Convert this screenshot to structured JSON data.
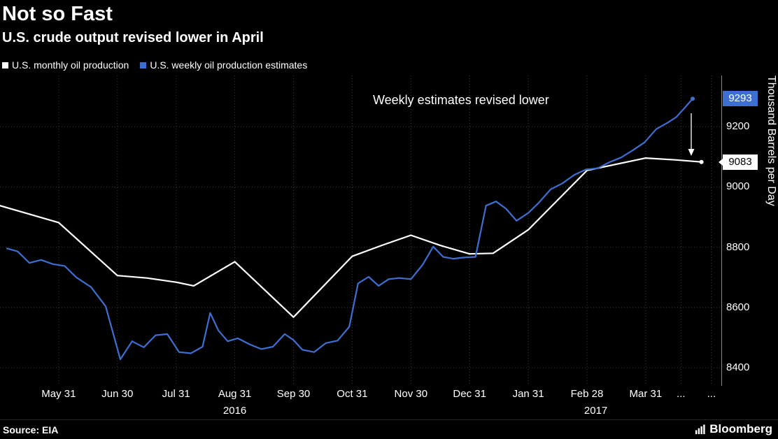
{
  "header": {
    "title": "Not so Fast",
    "subtitle": "U.S. crude output revised lower in April"
  },
  "legend": [
    {
      "label": "U.S. monthly oil production",
      "color": "#ffffff"
    },
    {
      "label": "U.S. weekly oil production estimates",
      "color": "#3d6fd2"
    }
  ],
  "annotation": {
    "text": "Weekly estimates revised lower"
  },
  "badges": {
    "weekly": {
      "value": "9293",
      "bg": "#3d6fd2",
      "fg": "#ffffff"
    },
    "monthly": {
      "value": "9083",
      "bg": "#ffffff",
      "fg": "#000000"
    }
  },
  "footer": {
    "source": "Source: EIA",
    "brand": "Bloomberg"
  },
  "chart_data": {
    "type": "line",
    "title": "Not so Fast",
    "subtitle": "U.S. crude output revised lower in April",
    "xlabel": "",
    "ylabel": "Thousand Barrels per Day",
    "units": "thousand barrels per day",
    "ylim": [
      8340,
      9370
    ],
    "xlim_months": [
      0,
      12.3
    ],
    "y_ticks": [
      9200,
      9000,
      8800,
      8600,
      8400
    ],
    "grid": "dotted",
    "grid_color": "#3c3c3c",
    "legend_position": "top-left",
    "x_ticks": [
      {
        "x": 1,
        "label": "May 31"
      },
      {
        "x": 2,
        "label": "Jun 30"
      },
      {
        "x": 3,
        "label": "Jul 31"
      },
      {
        "x": 4,
        "label": "Aug 31"
      },
      {
        "x": 5,
        "label": "Sep 30"
      },
      {
        "x": 6,
        "label": "Oct 31"
      },
      {
        "x": 7,
        "label": "Nov 30"
      },
      {
        "x": 8,
        "label": "Dec 31"
      },
      {
        "x": 9,
        "label": "Jan 31"
      },
      {
        "x": 10,
        "label": "Feb 28"
      },
      {
        "x": 11,
        "label": "Mar 31"
      },
      {
        "x": 11.6,
        "label": "..."
      },
      {
        "x": 12.12,
        "label": "..."
      }
    ],
    "year_labels": [
      {
        "x": 4,
        "label": "2016"
      },
      {
        "x": 10.15,
        "label": "2017"
      }
    ],
    "annotations": [
      {
        "text": "Weekly estimates revised lower",
        "type": "text-with-down-arrow"
      }
    ],
    "end_labels": [
      {
        "series": "U.S. weekly oil production estimates",
        "value": 9293
      },
      {
        "series": "U.S. monthly oil production",
        "value": 9083
      }
    ],
    "series": [
      {
        "name": "U.S. monthly oil production",
        "color": "#ffffff",
        "points": [
          [
            0,
            8938
          ],
          [
            1,
            8882
          ],
          [
            2,
            8706
          ],
          [
            2.5,
            8698
          ],
          [
            3,
            8684
          ],
          [
            3.3,
            8672
          ],
          [
            4,
            8752
          ],
          [
            5,
            8568
          ],
          [
            6,
            8770
          ],
          [
            6.5,
            8806
          ],
          [
            7,
            8840
          ],
          [
            7.5,
            8806
          ],
          [
            8,
            8778
          ],
          [
            8.4,
            8780
          ],
          [
            9,
            8858
          ],
          [
            10,
            9055
          ],
          [
            11,
            9096
          ],
          [
            11.5,
            9090
          ],
          [
            11.95,
            9083
          ]
        ]
      },
      {
        "name": "U.S. weekly oil production estimates",
        "color": "#3d6fd2",
        "points": [
          [
            0.12,
            8796
          ],
          [
            0.3,
            8786
          ],
          [
            0.5,
            8748
          ],
          [
            0.7,
            8758
          ],
          [
            0.9,
            8744
          ],
          [
            1.1,
            8738
          ],
          [
            1.3,
            8700
          ],
          [
            1.55,
            8668
          ],
          [
            1.8,
            8604
          ],
          [
            2.05,
            8428
          ],
          [
            2.25,
            8488
          ],
          [
            2.45,
            8468
          ],
          [
            2.65,
            8508
          ],
          [
            2.85,
            8512
          ],
          [
            3.05,
            8452
          ],
          [
            3.25,
            8448
          ],
          [
            3.45,
            8470
          ],
          [
            3.58,
            8582
          ],
          [
            3.72,
            8524
          ],
          [
            3.88,
            8488
          ],
          [
            4.05,
            8498
          ],
          [
            4.25,
            8478
          ],
          [
            4.45,
            8462
          ],
          [
            4.65,
            8470
          ],
          [
            4.85,
            8512
          ],
          [
            5.0,
            8492
          ],
          [
            5.15,
            8460
          ],
          [
            5.35,
            8452
          ],
          [
            5.55,
            8482
          ],
          [
            5.75,
            8490
          ],
          [
            5.95,
            8536
          ],
          [
            6.1,
            8680
          ],
          [
            6.28,
            8702
          ],
          [
            6.45,
            8672
          ],
          [
            6.62,
            8694
          ],
          [
            6.8,
            8698
          ],
          [
            7.0,
            8694
          ],
          [
            7.2,
            8742
          ],
          [
            7.38,
            8802
          ],
          [
            7.55,
            8768
          ],
          [
            7.72,
            8762
          ],
          [
            7.9,
            8766
          ],
          [
            8.1,
            8768
          ],
          [
            8.28,
            8938
          ],
          [
            8.45,
            8952
          ],
          [
            8.62,
            8928
          ],
          [
            8.8,
            8888
          ],
          [
            9.0,
            8914
          ],
          [
            9.18,
            8948
          ],
          [
            9.38,
            8992
          ],
          [
            9.58,
            9012
          ],
          [
            9.78,
            9040
          ],
          [
            9.98,
            9058
          ],
          [
            10.18,
            9062
          ],
          [
            10.38,
            9082
          ],
          [
            10.58,
            9098
          ],
          [
            10.78,
            9122
          ],
          [
            10.98,
            9148
          ],
          [
            11.18,
            9192
          ],
          [
            11.38,
            9214
          ],
          [
            11.52,
            9232
          ],
          [
            11.66,
            9262
          ],
          [
            11.8,
            9293
          ]
        ]
      }
    ]
  }
}
